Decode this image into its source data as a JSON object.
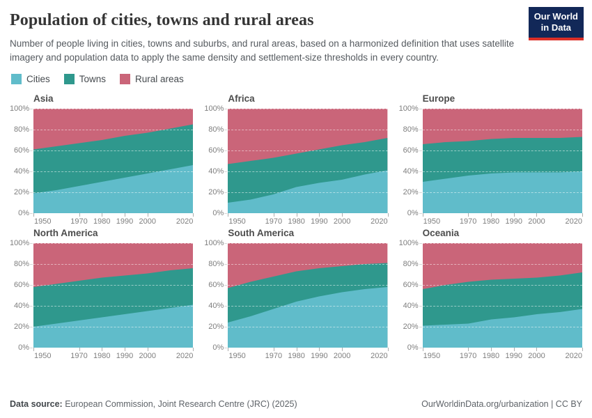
{
  "header": {
    "title": "Population of cities, towns and rural areas",
    "subtitle": "Number of people living in cities, towns and suburbs, and rural areas, based on a harmonized definition that uses satellite imagery and population data to apply the same density and settlement-size thresholds in every country.",
    "logo_line1": "Our World",
    "logo_line2": "in Data",
    "logo_bg": "#122858",
    "logo_accent": "#dc2f27"
  },
  "legend": [
    {
      "label": "Cities",
      "color": "#60bcca"
    },
    {
      "label": "Towns",
      "color": "#2f988d"
    },
    {
      "label": "Rural areas",
      "color": "#ca6579"
    }
  ],
  "chart_data": {
    "type": "area",
    "variant": "stacked-percent-small-multiples",
    "x": [
      1950,
      1960,
      1970,
      1980,
      1990,
      2000,
      2010,
      2020
    ],
    "x_ticks": [
      1950,
      1970,
      1980,
      1990,
      2000,
      2020
    ],
    "xlim": [
      1950,
      2020
    ],
    "y_ticks": [
      "0%",
      "20%",
      "40%",
      "60%",
      "80%",
      "100%"
    ],
    "ylim": [
      0,
      100
    ],
    "grid": true,
    "legend_position": "top-left",
    "series_names": [
      "Cities",
      "Towns",
      "Rural areas"
    ],
    "colors": {
      "cities": "#60bcca",
      "towns": "#2f988d",
      "rural": "#ca6579"
    },
    "facets": [
      {
        "title": "Asia",
        "cities": [
          19,
          22,
          26,
          30,
          34,
          38,
          42,
          46
        ],
        "towns": [
          42,
          42,
          41,
          40,
          40,
          39,
          39,
          39
        ],
        "rural": [
          39,
          36,
          33,
          30,
          26,
          23,
          19,
          15
        ]
      },
      {
        "title": "Africa",
        "cities": [
          10,
          13,
          18,
          25,
          29,
          32,
          37,
          41
        ],
        "towns": [
          37,
          37,
          35,
          32,
          32,
          33,
          31,
          31
        ],
        "rural": [
          53,
          50,
          47,
          43,
          39,
          35,
          32,
          28
        ]
      },
      {
        "title": "Europe",
        "cities": [
          30,
          33,
          36,
          38,
          39,
          39,
          39,
          40
        ],
        "towns": [
          36,
          35,
          33,
          33,
          33,
          33,
          33,
          33
        ],
        "rural": [
          34,
          32,
          31,
          29,
          28,
          28,
          28,
          27
        ]
      },
      {
        "title": "North America",
        "cities": [
          20,
          23,
          26,
          29,
          32,
          35,
          38,
          41
        ],
        "towns": [
          38,
          38,
          38,
          38,
          37,
          36,
          36,
          35
        ],
        "rural": [
          42,
          39,
          36,
          33,
          31,
          29,
          26,
          24
        ]
      },
      {
        "title": "South America",
        "cities": [
          24,
          30,
          37,
          44,
          49,
          53,
          56,
          58
        ],
        "towns": [
          33,
          33,
          31,
          29,
          27,
          25,
          24,
          23
        ],
        "rural": [
          43,
          37,
          32,
          27,
          24,
          22,
          20,
          19
        ]
      },
      {
        "title": "Oceania",
        "cities": [
          21,
          22,
          23,
          27,
          29,
          32,
          34,
          37
        ],
        "towns": [
          35,
          38,
          40,
          38,
          37,
          35,
          35,
          35
        ],
        "rural": [
          44,
          40,
          37,
          35,
          34,
          33,
          31,
          28
        ]
      }
    ]
  },
  "footer": {
    "source_label": "Data source:",
    "source_text": " European Commission, Joint Research Centre (JRC) (2025)",
    "right_text": "OurWorldinData.org/urbanization | CC BY"
  }
}
